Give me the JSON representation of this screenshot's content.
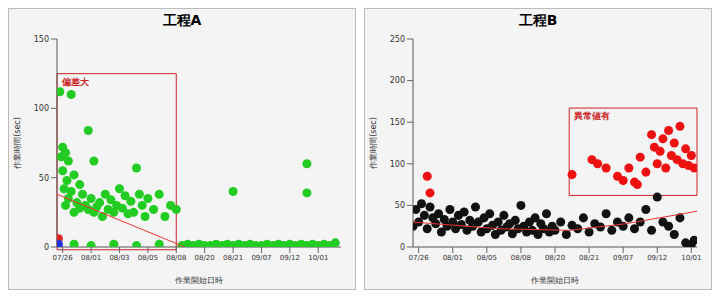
{
  "chart_data": [
    {
      "type": "scatter",
      "title": "工程A",
      "x_label": "作業開始日時",
      "y_label": "作業時間(sec)",
      "xlim": [
        0,
        100
      ],
      "ylim": [
        0,
        150
      ],
      "yticks": [
        0,
        50,
        100,
        150
      ],
      "xticks": [
        {
          "value": 2,
          "label": "07/26"
        },
        {
          "value": 12,
          "label": "08/01"
        },
        {
          "value": 22,
          "label": "08/03"
        },
        {
          "value": 32,
          "label": "08/05"
        },
        {
          "value": 42,
          "label": "08/08"
        },
        {
          "value": 52,
          "label": "08/20"
        },
        {
          "value": 62,
          "label": "08/21"
        },
        {
          "value": 72,
          "label": "09/07"
        },
        {
          "value": 82,
          "label": "09/12"
        },
        {
          "value": 92,
          "label": "10/01"
        }
      ],
      "grid": false,
      "series": [
        {
          "color": "#22cc22",
          "marker": "circle",
          "x": [
            1,
            1.5,
            2,
            2,
            2.5,
            3,
            3,
            3.5,
            4,
            4,
            5,
            5,
            6,
            6,
            7,
            8,
            8,
            9,
            10,
            11,
            11,
            12,
            13,
            13,
            14,
            15,
            16,
            17,
            18,
            19,
            20,
            21,
            22,
            23,
            24,
            25,
            26,
            27,
            28,
            29,
            30,
            31,
            32,
            34,
            36,
            38,
            40,
            42,
            6,
            12,
            20,
            28,
            36,
            44,
            46,
            48,
            50,
            52,
            54,
            56,
            58,
            60,
            62,
            62,
            64,
            66,
            68,
            70,
            72,
            74,
            76,
            78,
            80,
            82,
            84,
            86,
            88,
            88,
            88,
            90,
            92,
            94,
            96,
            98
          ],
          "values": [
            112,
            65,
            72,
            55,
            42,
            68,
            30,
            48,
            62,
            35,
            110,
            40,
            52,
            25,
            32,
            45,
            28,
            38,
            30,
            27,
            84,
            35,
            25,
            62,
            29,
            32,
            22,
            38,
            27,
            34,
            25,
            30,
            42,
            28,
            37,
            24,
            33,
            25,
            57,
            38,
            30,
            22,
            35,
            27,
            38,
            22,
            30,
            27,
            2,
            1,
            2,
            1,
            2,
            1,
            2,
            1,
            2,
            1,
            1,
            2,
            1,
            2,
            40,
            1,
            2,
            1,
            2,
            1,
            1,
            2,
            1,
            2,
            1,
            2,
            1,
            2,
            60,
            39,
            1,
            2,
            1,
            2,
            1,
            3
          ]
        },
        {
          "color": "#dd2222",
          "marker": "circle",
          "x": [
            0.5
          ],
          "values": [
            6
          ]
        },
        {
          "color": "#2233dd",
          "marker": "circle",
          "x": [
            0.5
          ],
          "values": [
            2
          ]
        },
        {
          "type": "line",
          "color": "#ee3333",
          "x": [
            0,
            45
          ],
          "values": [
            38,
            0
          ]
        }
      ],
      "annotation": {
        "text": "偏差大",
        "color": "#cc2222",
        "x1": 0,
        "x2": 42,
        "y1": -2,
        "y2": 125
      }
    },
    {
      "type": "scatter",
      "title": "工程B",
      "x_label": "作業開始日時",
      "y_label": "作業時間(sec)",
      "xlim": [
        0,
        100
      ],
      "ylim": [
        0,
        250
      ],
      "yticks": [
        0,
        50,
        100,
        150,
        200,
        250
      ],
      "xticks": [
        {
          "value": 2,
          "label": "07/26"
        },
        {
          "value": 14,
          "label": "08/01"
        },
        {
          "value": 26,
          "label": "08/05"
        },
        {
          "value": 38,
          "label": "08/08"
        },
        {
          "value": 50,
          "label": "08/20"
        },
        {
          "value": 62,
          "label": "08/21"
        },
        {
          "value": 74,
          "label": "09/07"
        },
        {
          "value": 86,
          "label": "09/12"
        },
        {
          "value": 98,
          "label": "10/01"
        }
      ],
      "grid": false,
      "series": [
        {
          "color": "#111111",
          "marker": "circle",
          "x": [
            0,
            1,
            2,
            3,
            4,
            5,
            6,
            7,
            8,
            9,
            10,
            11,
            12,
            13,
            14,
            15,
            16,
            17,
            18,
            19,
            20,
            21,
            22,
            23,
            24,
            25,
            26,
            27,
            28,
            29,
            30,
            31,
            32,
            33,
            34,
            35,
            36,
            37,
            38,
            39,
            40,
            41,
            42,
            43,
            44,
            45,
            46,
            47,
            48,
            49,
            50,
            52,
            54,
            56,
            58,
            60,
            62,
            64,
            66,
            68,
            70,
            72,
            74,
            76,
            78,
            80,
            82,
            84,
            86,
            88,
            90,
            92,
            94,
            96,
            98,
            99
          ],
          "values": [
            25,
            45,
            30,
            52,
            38,
            22,
            48,
            35,
            28,
            40,
            18,
            33,
            25,
            45,
            30,
            22,
            38,
            27,
            42,
            20,
            32,
            25,
            48,
            30,
            18,
            35,
            22,
            40,
            26,
            15,
            30,
            20,
            38,
            24,
            28,
            16,
            32,
            22,
            50,
            25,
            18,
            30,
            20,
            35,
            15,
            28,
            22,
            40,
            18,
            25,
            20,
            30,
            15,
            26,
            22,
            35,
            18,
            28,
            24,
            40,
            20,
            30,
            25,
            35,
            22,
            30,
            45,
            20,
            60,
            30,
            25,
            15,
            35,
            5,
            3,
            8
          ]
        },
        {
          "color": "#ee1111",
          "marker": "circle",
          "x": [
            5,
            6,
            56,
            63,
            65,
            68,
            72,
            74,
            76,
            78,
            79,
            80,
            82,
            84,
            85,
            86,
            87,
            88,
            89,
            90,
            91,
            92,
            93,
            94,
            95,
            96,
            97,
            98,
            99
          ],
          "values": [
            85,
            65,
            87,
            105,
            100,
            95,
            85,
            80,
            95,
            78,
            75,
            108,
            90,
            135,
            120,
            100,
            115,
            130,
            95,
            140,
            110,
            125,
            105,
            145,
            100,
            118,
            98,
            110,
            95
          ]
        },
        {
          "type": "line",
          "color": "#ee3333",
          "x": [
            0,
            30,
            55,
            75,
            100
          ],
          "values": [
            30,
            22,
            20,
            28,
            43
          ]
        }
      ],
      "annotation": {
        "text": "異常値有",
        "color": "#cc2222",
        "x1": 55,
        "x2": 100,
        "y1": 62,
        "y2": 167
      }
    }
  ]
}
